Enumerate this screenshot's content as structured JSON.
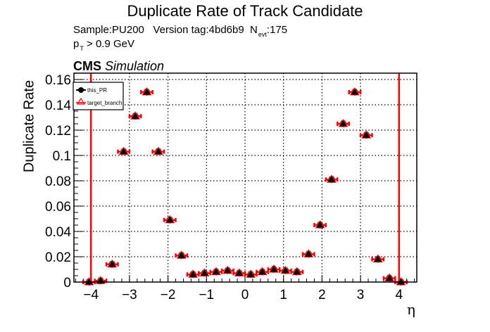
{
  "title": "Duplicate Rate of Track Candidate",
  "info": {
    "sample": "Sample:PU200",
    "version": "Version tag:4bd6b9",
    "nevt_label": "N",
    "nevt_sub": "evt",
    "nevt_value": ":175",
    "pt_label": "p",
    "pt_sub": "T",
    "pt_cut": " > 0.9 GeV"
  },
  "cms": {
    "bold": "CMS",
    "italic": "Simulation"
  },
  "legend": [
    {
      "label": "this_PR",
      "marker": "filled-circle",
      "color": "#000000"
    },
    {
      "label": "target_branch",
      "marker": "open-triangle",
      "color": "#ff0000"
    }
  ],
  "chart_data": {
    "type": "scatter",
    "title": "Duplicate Rate of Track Candidate",
    "xlabel": "η",
    "ylabel": "Duplicate Rate",
    "xlim": [
      -4.45,
      4.45
    ],
    "ylim": [
      0,
      0.165
    ],
    "xticks": [
      -4,
      -3,
      -2,
      -1,
      0,
      1,
      2,
      3,
      4
    ],
    "yticks": [
      0,
      0.02,
      0.04,
      0.06,
      0.08,
      0.1,
      0.12,
      0.14,
      0.16
    ],
    "ytick_labels": [
      "0",
      "0.02",
      "0.04",
      "0.06",
      "0.08",
      "0.1",
      "0.12",
      "0.14",
      "0.16"
    ],
    "grid": true,
    "legend_position": "top-left",
    "bin_width": 0.3,
    "vertical_lines": [
      -4.0,
      4.0
    ],
    "x": [
      -4.05,
      -3.75,
      -3.45,
      -3.15,
      -2.85,
      -2.55,
      -2.25,
      -1.95,
      -1.65,
      -1.35,
      -1.05,
      -0.75,
      -0.45,
      -0.15,
      0.15,
      0.45,
      0.75,
      1.05,
      1.35,
      1.65,
      1.95,
      2.25,
      2.55,
      2.85,
      3.15,
      3.45,
      3.75,
      4.05
    ],
    "series": [
      {
        "name": "this_PR",
        "values": [
          0.0,
          0.001,
          0.014,
          0.103,
          0.131,
          0.15,
          0.103,
          0.049,
          0.021,
          0.006,
          0.007,
          0.008,
          0.009,
          0.007,
          0.006,
          0.008,
          0.01,
          0.009,
          0.008,
          0.022,
          0.045,
          0.081,
          0.125,
          0.15,
          0.116,
          0.018,
          0.003,
          0.0
        ]
      },
      {
        "name": "target_branch",
        "values": [
          0.0,
          0.001,
          0.014,
          0.103,
          0.131,
          0.15,
          0.103,
          0.049,
          0.021,
          0.006,
          0.007,
          0.008,
          0.009,
          0.007,
          0.006,
          0.008,
          0.01,
          0.009,
          0.008,
          0.022,
          0.045,
          0.081,
          0.125,
          0.15,
          0.116,
          0.018,
          0.003,
          0.0
        ]
      }
    ],
    "yerr_approx": 0.002
  }
}
